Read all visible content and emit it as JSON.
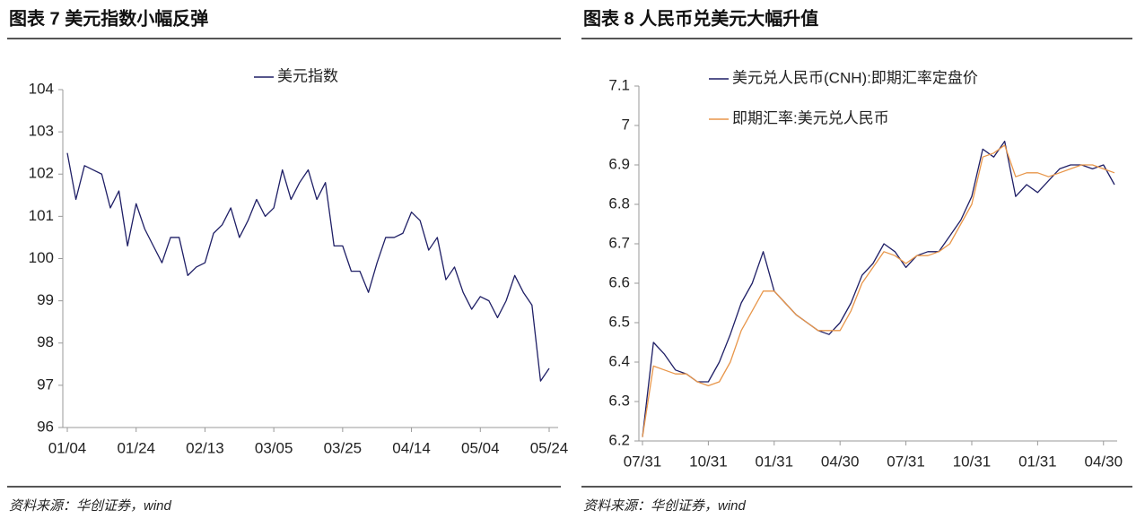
{
  "chart_data": [
    {
      "type": "line",
      "title": "图表 7 美元指数小幅反弹",
      "source": "资料来源：华创证券，wind",
      "categories": [
        "01/04",
        null,
        null,
        null,
        null,
        null,
        null,
        null,
        "01/24",
        null,
        null,
        null,
        null,
        null,
        null,
        null,
        "02/13",
        null,
        null,
        null,
        null,
        null,
        null,
        null,
        "03/05",
        null,
        null,
        null,
        null,
        null,
        null,
        null,
        "03/25",
        null,
        null,
        null,
        null,
        null,
        null,
        null,
        "04/14",
        null,
        null,
        null,
        null,
        null,
        null,
        null,
        "05/04",
        null,
        null,
        null,
        null,
        null,
        null,
        null,
        "05/24"
      ],
      "series": [
        {
          "name": "美元指数",
          "color": "#1f1f66",
          "values": [
            102.5,
            101.4,
            102.2,
            102.1,
            102.0,
            101.2,
            101.6,
            100.3,
            101.3,
            100.7,
            100.3,
            99.9,
            100.5,
            100.5,
            99.6,
            99.8,
            99.9,
            100.6,
            100.8,
            101.2,
            100.5,
            100.9,
            101.4,
            101.0,
            101.2,
            102.1,
            101.4,
            101.8,
            102.1,
            101.4,
            101.8,
            100.3,
            100.3,
            99.7,
            99.7,
            99.2,
            99.9,
            100.5,
            100.5,
            100.6,
            101.1,
            100.9,
            100.2,
            100.5,
            99.5,
            99.8,
            99.2,
            98.8,
            99.1,
            99.0,
            98.6,
            99.0,
            99.6,
            99.2,
            98.9,
            97.1,
            97.4
          ]
        }
      ],
      "ylim": [
        96,
        104
      ],
      "yticks": [
        96,
        97,
        98,
        99,
        100,
        101,
        102,
        103,
        104
      ],
      "legend": "top"
    },
    {
      "type": "line",
      "title": "图表 8 人民币兑美元大幅升值",
      "source": "资料来源：华创证券，wind",
      "categories": [
        "07/31",
        null,
        null,
        null,
        null,
        null,
        "10/31",
        null,
        null,
        null,
        null,
        null,
        "01/31",
        null,
        null,
        null,
        null,
        null,
        "04/30",
        null,
        null,
        null,
        null,
        null,
        "07/31",
        null,
        null,
        null,
        null,
        null,
        "10/31",
        null,
        null,
        null,
        null,
        null,
        "01/31",
        null,
        null,
        null,
        null,
        null,
        "04/30",
        null
      ],
      "series": [
        {
          "name": "美元兑人民币(CNH):即期汇率定盘价",
          "color": "#1f1f66",
          "values": [
            6.21,
            6.45,
            6.42,
            6.38,
            6.37,
            6.35,
            6.35,
            6.4,
            6.47,
            6.55,
            6.6,
            6.68,
            6.58,
            6.55,
            6.52,
            6.5,
            6.48,
            6.47,
            6.5,
            6.55,
            6.62,
            6.65,
            6.7,
            6.68,
            6.64,
            6.67,
            6.68,
            6.68,
            6.72,
            6.76,
            6.82,
            6.94,
            6.92,
            6.96,
            6.82,
            6.85,
            6.83,
            6.86,
            6.89,
            6.9,
            6.9,
            6.89,
            6.9,
            6.85
          ]
        },
        {
          "name": "即期汇率:美元兑人民币",
          "color": "#e8964a",
          "values": [
            6.21,
            6.39,
            6.38,
            6.37,
            6.37,
            6.35,
            6.34,
            6.35,
            6.4,
            6.48,
            6.53,
            6.58,
            6.58,
            6.55,
            6.52,
            6.5,
            6.48,
            6.48,
            6.48,
            6.53,
            6.6,
            6.64,
            6.68,
            6.67,
            6.65,
            6.67,
            6.67,
            6.68,
            6.7,
            6.75,
            6.8,
            6.92,
            6.93,
            6.95,
            6.87,
            6.88,
            6.88,
            6.87,
            6.88,
            6.89,
            6.9,
            6.9,
            6.89,
            6.88
          ]
        }
      ],
      "ylim": [
        6.2,
        7.1
      ],
      "yticks": [
        6.2,
        6.3,
        6.4,
        6.5,
        6.6,
        6.7,
        6.8,
        6.9,
        7,
        7.1
      ],
      "legend": "top-left"
    }
  ]
}
